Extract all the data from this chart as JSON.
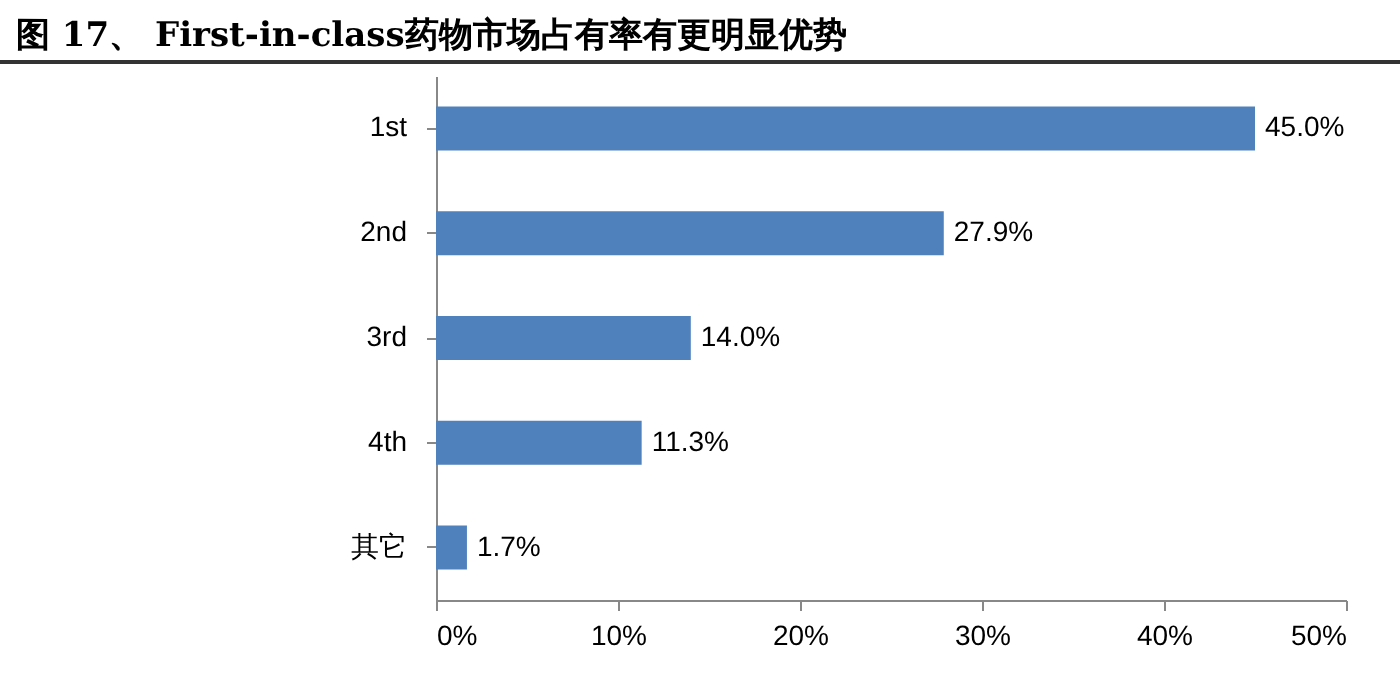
{
  "chart_data": {
    "type": "bar",
    "orientation": "horizontal",
    "title": "图 17、  First-in-class药物市场占有率有更明显优势",
    "categories": [
      "1st",
      "2nd",
      "3rd",
      "4th",
      "其它"
    ],
    "values": [
      45.0,
      27.9,
      14.0,
      11.3,
      1.7
    ],
    "value_labels": [
      "45.0%",
      "27.9%",
      "14.0%",
      "11.3%",
      "1.7%"
    ],
    "color": "#4f81bd",
    "xlim": [
      0,
      50
    ],
    "xticks": [
      {
        "value": 0,
        "label": "0%"
      },
      {
        "value": 10,
        "label": "10%"
      },
      {
        "value": 20,
        "label": "20%"
      },
      {
        "value": 30,
        "label": "30%"
      },
      {
        "value": 40,
        "label": "40%"
      },
      {
        "value": 50,
        "label": "50%"
      }
    ]
  }
}
